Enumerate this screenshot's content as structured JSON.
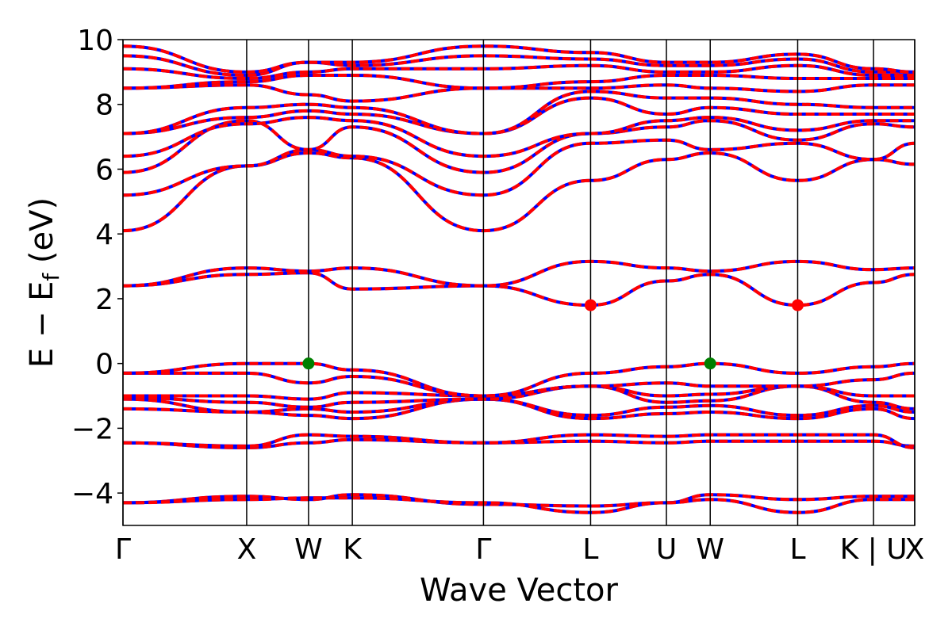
{
  "chart_data": {
    "type": "line",
    "title": "",
    "xlabel": "Wave Vector",
    "ylabel_main": "E − E",
    "ylabel_sub": "f",
    "ylabel_unit": " (eV)",
    "ylim": [
      -5,
      10
    ],
    "yticks": [
      -4,
      -2,
      0,
      2,
      4,
      6,
      8,
      10
    ],
    "ytick_labels": [
      "−4",
      "−2",
      "0",
      "2",
      "4",
      "6",
      "8",
      "10"
    ],
    "xlim": [
      0,
      6.4
    ],
    "kpoints": [
      {
        "label": "Γ",
        "x": 0.0
      },
      {
        "label": "X",
        "x": 1.0
      },
      {
        "label": "W",
        "x": 1.5
      },
      {
        "label": "K",
        "x": 1.854
      },
      {
        "label": "Γ",
        "x": 2.914
      },
      {
        "label": "L",
        "x": 3.78
      },
      {
        "label": "U",
        "x": 4.393
      },
      {
        "label": "W",
        "x": 4.747
      },
      {
        "label": "L",
        "x": 5.454
      },
      {
        "label": "K | U",
        "x": 6.067
      },
      {
        "label": "X",
        "x": 6.4
      }
    ],
    "markers": [
      {
        "name": "VBM",
        "color": "#008000",
        "points": [
          [
            1.5,
            0.0
          ],
          [
            4.747,
            0.0
          ]
        ]
      },
      {
        "name": "CBM",
        "color": "#ff0000",
        "points": [
          [
            3.78,
            1.8
          ],
          [
            5.454,
            1.8
          ]
        ]
      }
    ],
    "colors": {
      "band_solid": "#0000ff",
      "band_dashed": "#ff0000",
      "kpoint_line": "#000000"
    },
    "grid": false,
    "bands": [
      {
        "y": [
          -4.3,
          -4.1,
          -4.2,
          -4.05,
          -4.35,
          -4.4,
          -4.3,
          -4.05,
          -4.2,
          -4.1,
          -4.1
        ]
      },
      {
        "y": [
          -4.3,
          -4.2,
          -4.15,
          -4.15,
          -4.3,
          -4.6,
          -4.3,
          -4.2,
          -4.6,
          -4.2,
          -4.2
        ]
      },
      {
        "y": [
          -2.45,
          -2.6,
          -2.45,
          -2.35,
          -2.45,
          -2.4,
          -2.45,
          -2.4,
          -2.4,
          -2.4,
          -2.55
        ]
      },
      {
        "y": [
          -2.45,
          -2.55,
          -2.2,
          -2.25,
          -2.45,
          -2.2,
          -2.25,
          -2.2,
          -2.2,
          -2.2,
          -2.6
        ]
      },
      {
        "y": [
          -1.4,
          -1.5,
          -1.6,
          -1.7,
          -1.1,
          -1.7,
          -1.55,
          -1.5,
          -1.7,
          -1.4,
          -1.7
        ]
      },
      {
        "y": [
          -1.1,
          -1.5,
          -1.4,
          -1.5,
          -1.1,
          -1.6,
          -1.35,
          -1.3,
          -1.6,
          -1.3,
          -1.5
        ]
      },
      {
        "y": [
          -1.05,
          -1.2,
          -1.35,
          -1.2,
          -1.1,
          -0.7,
          -1.2,
          -1.15,
          -0.7,
          -1.2,
          -1.4
        ]
      },
      {
        "y": [
          -1.0,
          -1.0,
          -1.1,
          -0.9,
          -1.0,
          -0.7,
          -1.0,
          -0.95,
          -0.7,
          -1.0,
          -1.0
        ]
      },
      {
        "y": [
          -0.3,
          -0.3,
          -0.6,
          -0.4,
          -1.0,
          -0.7,
          -0.6,
          -0.7,
          -0.7,
          -0.5,
          -0.3
        ]
      },
      {
        "y": [
          -0.3,
          0.0,
          0.0,
          -0.2,
          -1.0,
          -0.3,
          -0.1,
          0.0,
          -0.3,
          -0.1,
          0.0
        ]
      },
      {
        "y": [
          2.4,
          2.75,
          2.8,
          2.3,
          2.4,
          1.8,
          2.55,
          2.75,
          1.8,
          2.5,
          2.75
        ]
      },
      {
        "y": [
          2.4,
          2.95,
          2.85,
          2.95,
          2.4,
          3.15,
          2.95,
          2.85,
          3.15,
          2.9,
          2.95
        ]
      },
      {
        "y": [
          4.1,
          6.1,
          6.5,
          6.35,
          4.1,
          5.65,
          6.3,
          6.5,
          5.65,
          6.3,
          6.15
        ]
      },
      {
        "y": [
          5.2,
          6.1,
          6.6,
          6.4,
          5.2,
          6.8,
          6.9,
          6.6,
          6.8,
          6.3,
          6.8
        ]
      },
      {
        "y": [
          5.9,
          7.5,
          6.6,
          7.3,
          5.9,
          7.1,
          7.3,
          7.5,
          6.9,
          7.4,
          7.3
        ]
      },
      {
        "y": [
          6.4,
          7.4,
          7.6,
          7.5,
          6.4,
          7.1,
          7.5,
          7.6,
          7.2,
          7.5,
          7.5
        ]
      },
      {
        "y": [
          7.1,
          7.6,
          7.8,
          7.7,
          7.1,
          8.2,
          7.7,
          7.9,
          7.7,
          7.7,
          7.7
        ]
      },
      {
        "y": [
          7.1,
          7.9,
          8.0,
          7.9,
          7.1,
          8.4,
          8.2,
          8.2,
          8.0,
          7.9,
          7.9
        ]
      },
      {
        "y": [
          8.5,
          8.6,
          8.3,
          8.1,
          8.5,
          8.5,
          8.6,
          8.5,
          8.4,
          8.6,
          8.6
        ]
      },
      {
        "y": [
          8.5,
          8.7,
          8.9,
          8.9,
          8.5,
          8.7,
          8.9,
          8.9,
          8.8,
          8.8,
          8.8
        ]
      },
      {
        "y": [
          9.1,
          8.8,
          9.0,
          9.1,
          9.1,
          9.2,
          9.0,
          9.0,
          9.2,
          8.9,
          8.9
        ]
      },
      {
        "y": [
          9.5,
          8.9,
          9.3,
          9.2,
          9.5,
          9.4,
          9.2,
          9.2,
          9.4,
          9.0,
          9.0
        ]
      },
      {
        "y": [
          9.8,
          9.0,
          9.3,
          9.3,
          9.8,
          9.6,
          9.3,
          9.3,
          9.55,
          9.1,
          9.0
        ]
      }
    ]
  }
}
